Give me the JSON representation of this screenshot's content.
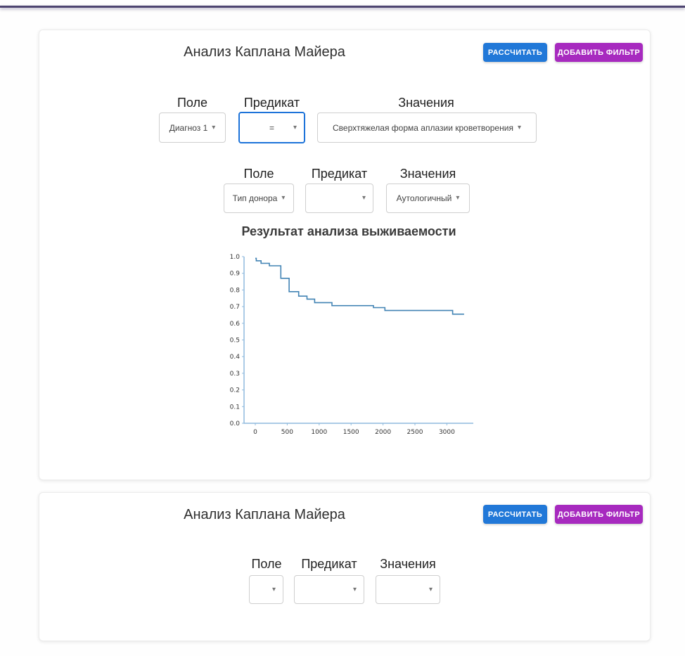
{
  "colors": {
    "topbar": "#4d4470",
    "calculate_button": "#2178d8",
    "add_filter_button": "#a72abf",
    "focused_dropdown_border": "#1d73d9",
    "chart_line": "#4183b4",
    "chart_axis": "#8fbadd"
  },
  "cards": [
    {
      "title": "Анализ Каплана Майера",
      "buttons": {
        "calculate": "РАССЧИТАТЬ",
        "add_filter": "ДОБАВИТЬ ФИЛЬТР"
      },
      "filters": [
        {
          "labels": {
            "field": "Поле",
            "predicate": "Предикат",
            "values": "Значения"
          },
          "field": "Диагноз 1",
          "predicate": "=",
          "value": "Сверхтяжелая форма аплазии кроветворения"
        },
        {
          "labels": {
            "field": "Поле",
            "predicate": "Предикат",
            "values": "Значения"
          },
          "field": "Тип донора",
          "predicate": "",
          "value": "Аутологичный"
        }
      ],
      "result_title": "Результат анализа выживаемости"
    },
    {
      "title": "Анализ Каплана Майера",
      "buttons": {
        "calculate": "РАССЧИТАТЬ",
        "add_filter": "ДОБАВИТЬ ФИЛЬТР"
      },
      "filters": [
        {
          "labels": {
            "field": "Поле",
            "predicate": "Предикат",
            "values": "Значения"
          },
          "field": "",
          "predicate": "",
          "value": ""
        }
      ]
    }
  ],
  "chart_data": {
    "type": "line",
    "subtype": "step-survival",
    "title": "Результат анализа выживаемости",
    "xlabel": "",
    "ylabel": "",
    "x": [
      0,
      15,
      90,
      220,
      400,
      530,
      680,
      810,
      930,
      1200,
      1850,
      2030,
      3090,
      3270
    ],
    "y": [
      0.99,
      0.975,
      0.96,
      0.945,
      0.87,
      0.79,
      0.763,
      0.745,
      0.724,
      0.706,
      0.694,
      0.677,
      0.655,
      0.655
    ],
    "x_ticks": [
      0,
      500,
      1000,
      1500,
      2000,
      2500,
      3000
    ],
    "y_ticks": [
      0.0,
      0.1,
      0.2,
      0.3,
      0.4,
      0.5,
      0.6,
      0.7,
      0.8,
      0.9,
      1.0
    ],
    "xlim": [
      -180,
      3450
    ],
    "ylim": [
      0,
      1.0
    ],
    "grid": false,
    "legend": "none",
    "line_color": "#4183b4",
    "axis_color": "#8fbadd"
  }
}
